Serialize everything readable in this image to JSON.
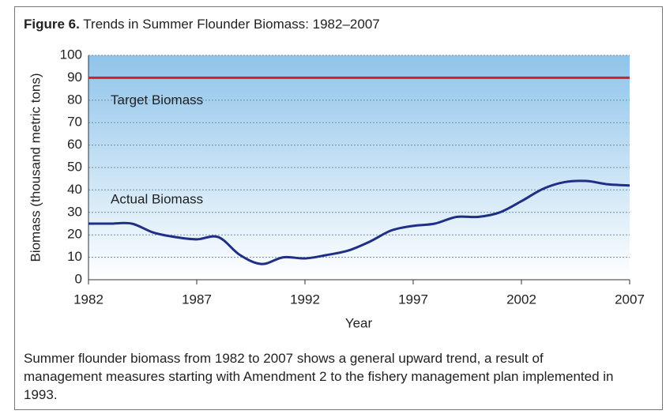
{
  "chart_data": {
    "type": "line",
    "figure_label": "Figure 6.",
    "title": "Trends in Summer Flounder Biomass: 1982–2007",
    "x_label": "Year",
    "y_label": "Biomass (thousand metric tons)",
    "x": [
      1982,
      1983,
      1984,
      1985,
      1986,
      1987,
      1988,
      1989,
      1990,
      1991,
      1992,
      1993,
      1994,
      1995,
      1996,
      1997,
      1998,
      1999,
      2000,
      2001,
      2002,
      2003,
      2004,
      2005,
      2006,
      2007
    ],
    "series": [
      {
        "name": "Actual Biomass",
        "color": "#1f2f86",
        "values": [
          25,
          25,
          25,
          21,
          19,
          18,
          19,
          11,
          7,
          10,
          9.5,
          11,
          13,
          17,
          22,
          24,
          25,
          28,
          28,
          30,
          35,
          40.5,
          43.5,
          44,
          42.5,
          42
        ]
      }
    ],
    "target": {
      "name": "Target Biomass",
      "value": 90,
      "color": "#d0202a"
    },
    "xlim": [
      1982,
      2007
    ],
    "xticks": [
      1982,
      1987,
      1992,
      1997,
      2002,
      2007
    ],
    "ylim": [
      0,
      100
    ],
    "yticks": [
      0,
      10,
      20,
      30,
      40,
      50,
      60,
      70,
      80,
      90,
      100
    ],
    "grid": true,
    "caption": "Summer flounder biomass from 1982 to 2007 shows a general upward trend, a result of management measures starting with Amendment 2 to the fishery management plan implemented in 1993."
  }
}
